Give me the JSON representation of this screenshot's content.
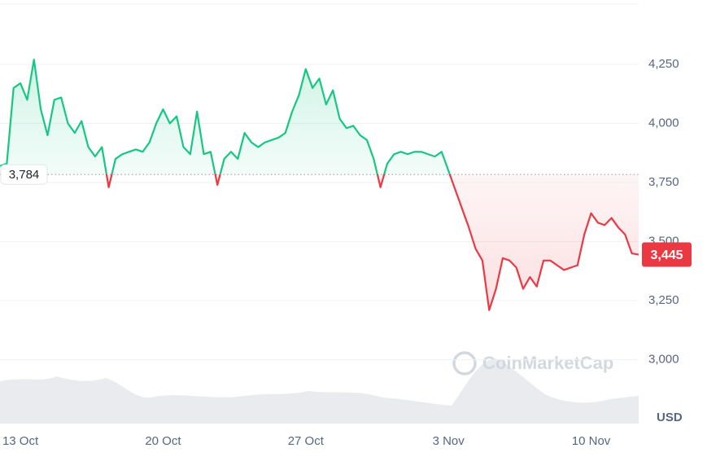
{
  "chart_data": {
    "type": "baseline-area",
    "categories": [
      null,
      null,
      null,
      "13 Oct",
      null,
      null,
      null,
      null,
      null,
      null,
      null,
      null,
      null,
      null,
      null,
      null,
      null,
      null,
      null,
      null,
      null,
      null,
      null,
      null,
      "20 Oct",
      null,
      null,
      null,
      null,
      null,
      null,
      null,
      null,
      null,
      null,
      null,
      null,
      null,
      null,
      null,
      null,
      null,
      null,
      null,
      null,
      "27 Oct",
      null,
      null,
      null,
      null,
      null,
      null,
      null,
      null,
      null,
      null,
      null,
      null,
      null,
      null,
      null,
      null,
      null,
      null,
      null,
      null,
      "3 Nov",
      null,
      null,
      null,
      null,
      null,
      null,
      null,
      null,
      null,
      null,
      null,
      null,
      null,
      null,
      null,
      null,
      null,
      null,
      null,
      null,
      "10 Nov",
      null,
      null,
      null,
      null,
      null,
      null,
      null
    ],
    "values": [
      3820,
      3830,
      4150,
      4170,
      4100,
      4270,
      4060,
      3950,
      4100,
      4110,
      4000,
      3960,
      4010,
      3900,
      3860,
      3900,
      3730,
      3850,
      3870,
      3880,
      3890,
      3880,
      3920,
      4000,
      4060,
      4000,
      4030,
      3900,
      3870,
      4050,
      3870,
      3880,
      3740,
      3850,
      3880,
      3850,
      3960,
      3920,
      3900,
      3920,
      3930,
      3940,
      3960,
      4050,
      4120,
      4230,
      4150,
      4190,
      4080,
      4140,
      4020,
      3980,
      3990,
      3950,
      3930,
      3850,
      3730,
      3830,
      3870,
      3880,
      3870,
      3880,
      3880,
      3870,
      3860,
      3880,
      3800,
      3720,
      3640,
      3560,
      3470,
      3420,
      3210,
      3300,
      3430,
      3420,
      3390,
      3300,
      3350,
      3310,
      3420,
      3420,
      3400,
      3380,
      3390,
      3400,
      3530,
      3620,
      3580,
      3570,
      3600,
      3560,
      3530,
      3450,
      3445
    ],
    "baseline": {
      "value": 3784,
      "label": "3,784"
    },
    "last_value": {
      "value": 3445,
      "label": "3,445"
    },
    "up_color": "#16c784",
    "down_color": "#ea3943",
    "ylim": [
      2730,
      4505
    ],
    "yticks": [
      {
        "value": 3000,
        "label": "3,000"
      },
      {
        "value": 3250,
        "label": "3,250"
      },
      {
        "value": 3500,
        "label": "3,500"
      },
      {
        "value": 3750,
        "label": "3,750"
      },
      {
        "value": 4000,
        "label": "4,000"
      },
      {
        "value": 4250,
        "label": "4,250"
      }
    ],
    "y_axis_label": "USD",
    "watermark": "CoinMarketCap",
    "grid": true
  }
}
